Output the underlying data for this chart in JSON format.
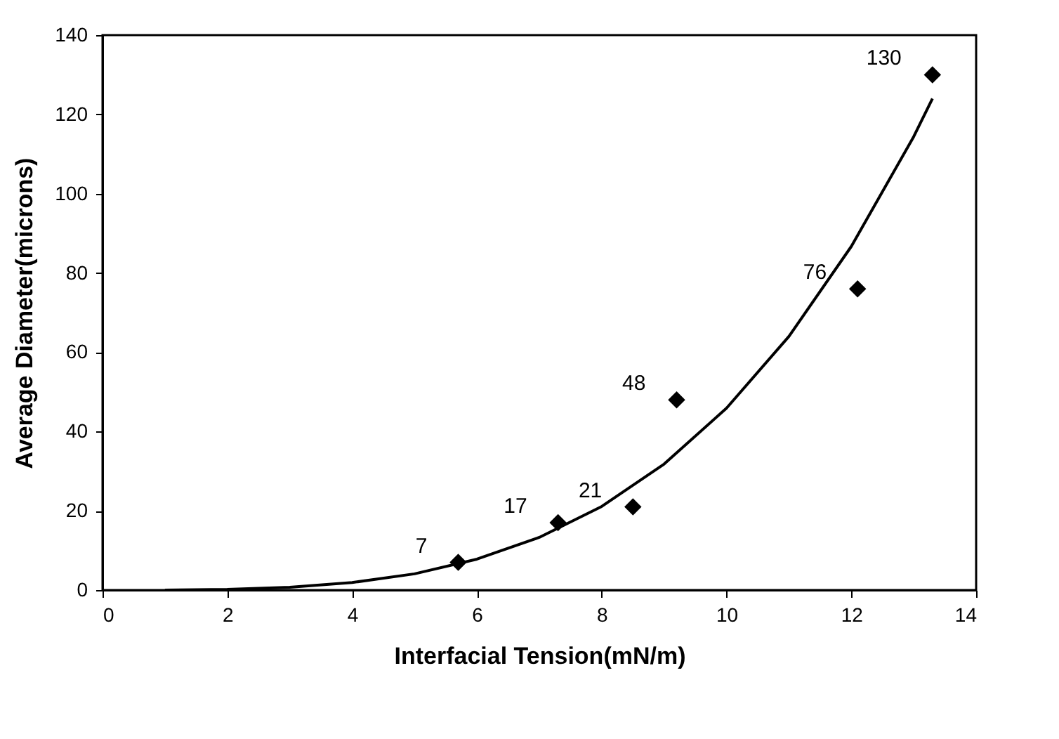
{
  "chart_data": {
    "type": "scatter",
    "xlabel": "Interfacial Tension(mN/m)",
    "ylabel": "Average Diameter(microns)",
    "xlim": [
      0,
      14
    ],
    "xticks": [
      0,
      2,
      4,
      6,
      8,
      10,
      12,
      14
    ],
    "ylim": [
      0,
      140
    ],
    "yticks": [
      0,
      20,
      40,
      60,
      80,
      100,
      120,
      140
    ],
    "grid": false,
    "series": [
      {
        "color": "#000000",
        "marker": "diamond",
        "data_labels": true,
        "x": [
          5.7,
          7.3,
          8.5,
          9.2,
          12.1,
          13.3
        ],
        "values": [
          7,
          17,
          21,
          48,
          76,
          130
        ]
      },
      {
        "type": "line",
        "color": "#000000",
        "marker": "none",
        "line_style": "solid",
        "x": [
          1,
          2,
          3,
          4,
          5,
          6,
          7,
          8,
          9,
          10,
          11,
          12,
          13,
          13.3
        ],
        "values": [
          0,
          0.17,
          0.7,
          1.9,
          4.1,
          7.8,
          13.3,
          21.1,
          31.8,
          45.9,
          64,
          86.7,
          114.4,
          124
        ]
      }
    ]
  }
}
